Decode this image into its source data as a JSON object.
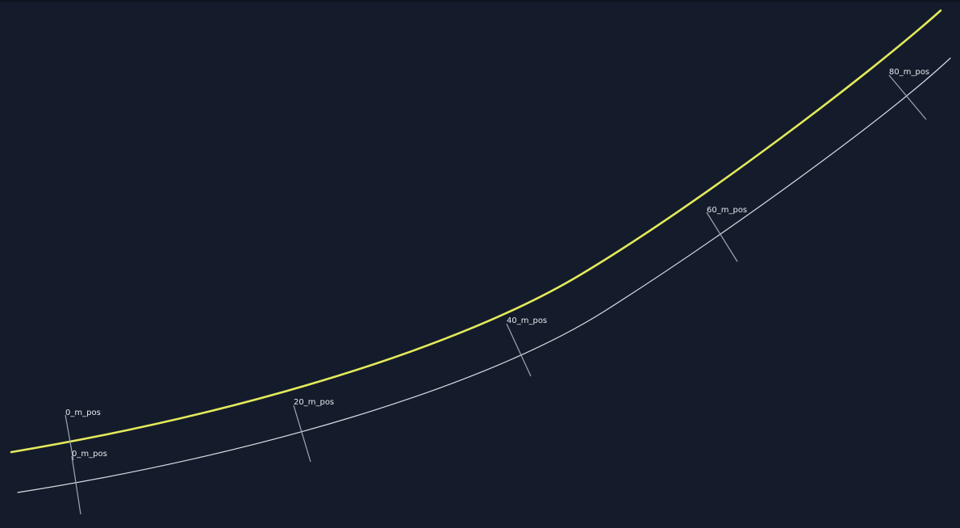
{
  "colors": {
    "background": "#141c2b",
    "main_track": "#e4ea5a",
    "offset_track": "#d9dde4",
    "tick": "#9ea6b2",
    "label": "#e6e9ee"
  },
  "markers": [
    {
      "label": "0_m_pos"
    },
    {
      "label": "0_m_pos"
    },
    {
      "label": "20_m_pos"
    },
    {
      "label": "40_m_pos"
    },
    {
      "label": "60_m_pos"
    },
    {
      "label": "80_m_pos"
    }
  ]
}
